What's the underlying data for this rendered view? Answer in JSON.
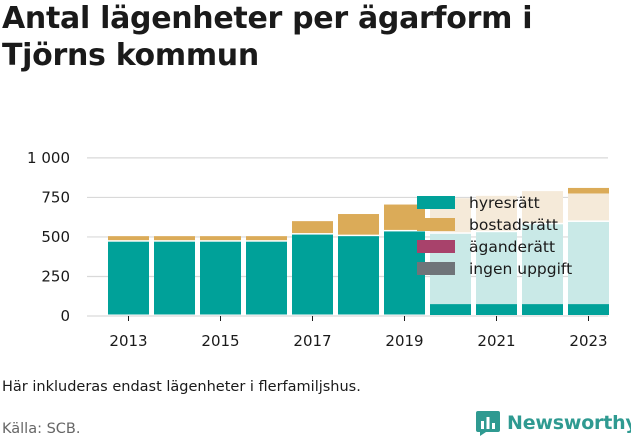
{
  "title": "Antal lägenheter per ägarform i Tjörns kommun",
  "note": "Här inkluderas endast lägenheter i flerfamiljshus.",
  "source": "Källa: SCB.",
  "brand": {
    "name": "Newsworthy",
    "logo_icon": "newsworthy-chart-bubble-icon"
  },
  "colors": {
    "hyresratt": "#00a199",
    "bostadsratt": "#dbab58",
    "aganderatt": "#a8426b",
    "ingen_uppgift": "#6f7479",
    "hyresratt_light": "#c9e9e7",
    "bostadsratt_light": "#f5ead9",
    "grid": "#d9d9d9",
    "brand": "#2f9a91"
  },
  "chart_data": {
    "type": "bar",
    "stacked": true,
    "categories": [
      "2013",
      "2014",
      "2015",
      "2016",
      "2017",
      "2018",
      "2019",
      "2020",
      "2021",
      "2022",
      "2023"
    ],
    "x_tick_labels": [
      "2013",
      "2015",
      "2017",
      "2019",
      "2021",
      "2023"
    ],
    "y_ticks": [
      0,
      250,
      500,
      750,
      1000
    ],
    "y_tick_labels": [
      "0",
      "250",
      "500",
      "750",
      "1 000"
    ],
    "ylim": [
      0,
      1050
    ],
    "grid": true,
    "legend_position": "inside-right",
    "highlight_note": "Bars for 2020–2023 are drawn in lighter tones where the legend overlaps",
    "series": [
      {
        "name": "hyresrätt",
        "key": "hyresratt",
        "values": [
          470,
          470,
          470,
          470,
          515,
          505,
          535,
          520,
          530,
          580,
          595
        ]
      },
      {
        "name": "bostadsrätt",
        "key": "bostadsratt",
        "values": [
          35,
          35,
          35,
          35,
          85,
          140,
          170,
          225,
          230,
          210,
          215
        ]
      },
      {
        "name": "äganderätt",
        "key": "aganderatt",
        "values": [
          0,
          0,
          0,
          0,
          0,
          0,
          0,
          0,
          0,
          0,
          0
        ]
      },
      {
        "name": "ingen uppgift",
        "key": "ingen_uppgift",
        "values": [
          0,
          0,
          0,
          0,
          0,
          0,
          0,
          0,
          0,
          0,
          0
        ]
      }
    ]
  }
}
